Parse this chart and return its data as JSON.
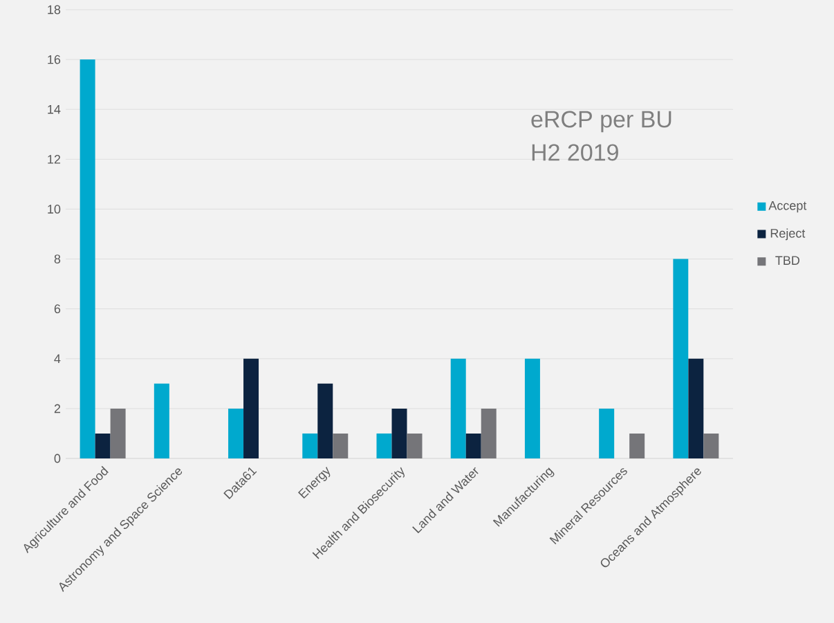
{
  "chart_data": {
    "type": "bar",
    "title": "eRCP per BU",
    "subtitle": "H2 2019",
    "categories": [
      "Agriculture and Food",
      "Astronomy and Space Science",
      "Data61",
      "Energy",
      "Health and Biosecurity",
      "Land and Water",
      "Manufacturing",
      "Mineral Resources",
      "Oceans and Atmosphere"
    ],
    "series": [
      {
        "name": "Accept",
        "color": "#00a9ce",
        "values": [
          16,
          3,
          2,
          1,
          1,
          4,
          4,
          2,
          8
        ]
      },
      {
        "name": "Reject",
        "color": "#0c2340",
        "values": [
          1,
          0,
          4,
          3,
          2,
          1,
          0,
          0,
          4
        ]
      },
      {
        "name": "TBD",
        "color": "#757579",
        "values": [
          2,
          0,
          0,
          1,
          1,
          2,
          0,
          1,
          1
        ]
      }
    ],
    "ylim": [
      0,
      18
    ],
    "yticks": [
      0,
      2,
      4,
      6,
      8,
      10,
      12,
      14,
      16,
      18
    ],
    "grid": "y",
    "legend": "right"
  }
}
